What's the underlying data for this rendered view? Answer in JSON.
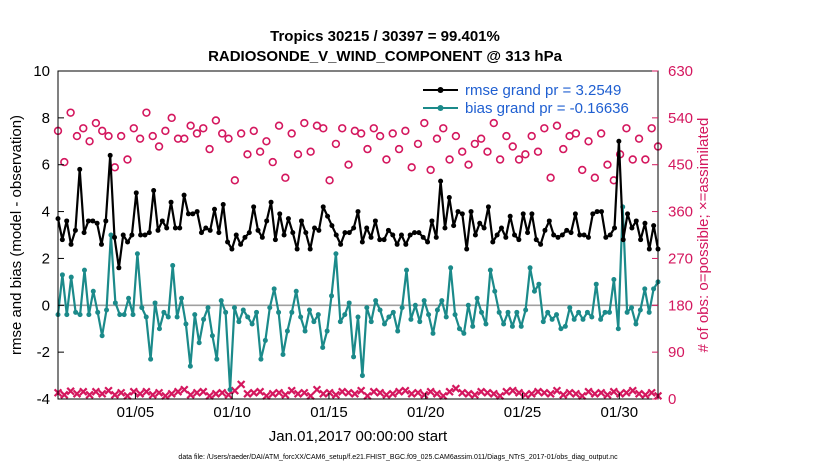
{
  "chart_data": {
    "type": "line",
    "title": "Tropics 30215 / 30397 = 99.401%",
    "subtitle": "RADIOSONDE_V_WIND_COMPONENT @ 313 hPa",
    "xlabel": "Jan.01,2017 00:00:00 start",
    "ylabel_left": "rmse and bias (model - observation)",
    "ylabel_right": "# of obs: o=possible; ×=assimilated",
    "footer": "data file: /Users/raeder/DAI/ATM_forcXX/CAM6_setup/f.e21.FHIST_BGC.f09_025.CAM6assim.011/Diags_NTrS_2017-01/obs_diag_output.nc",
    "x_range": [
      1,
      32
    ],
    "ylim_left": [
      -4,
      10
    ],
    "ylim_right": [
      0,
      630
    ],
    "x_ticks": [
      {
        "day": 5,
        "label": "01/05"
      },
      {
        "day": 10,
        "label": "01/10"
      },
      {
        "day": 15,
        "label": "01/15"
      },
      {
        "day": 20,
        "label": "01/20"
      },
      {
        "day": 25,
        "label": "01/25"
      },
      {
        "day": 30,
        "label": "01/30"
      }
    ],
    "y_ticks_left": [
      "10",
      "8",
      "6",
      "4",
      "2",
      "0",
      "-2",
      "-4"
    ],
    "y_ticks_right": [
      "630",
      "540",
      "450",
      "360",
      "270",
      "180",
      "90",
      "0"
    ],
    "legend": [
      {
        "label": "rmse grand pr = 3.2549",
        "color": "#000000"
      },
      {
        "label": "bias grand pr = -0.16636",
        "color": "#1b8a8a"
      }
    ],
    "colors": {
      "rmse": "#000000",
      "bias": "#1b8a8a",
      "obs": "#d4175e",
      "zero_line": "#a0a0a0"
    },
    "series": [
      {
        "name": "rmse",
        "values": [
          3.7,
          2.8,
          3.6,
          2.6,
          3.2,
          5.8,
          3.1,
          3.6,
          3.6,
          3.5,
          2.6,
          3.6,
          6.4,
          2.9,
          1.6,
          3.0,
          2.7,
          3.0,
          4.8,
          3.0,
          3.0,
          3.1,
          4.9,
          3.2,
          3.6,
          3.3,
          4.4,
          3.3,
          3.3,
          4.7,
          3.9,
          3.9,
          4.0,
          3.1,
          3.3,
          3.2,
          4.1,
          3.1,
          4.3,
          2.7,
          2.4,
          3.0,
          2.6,
          2.9,
          3.1,
          4.2,
          3.2,
          2.9,
          3.6,
          4.4,
          2.8,
          3.9,
          3.0,
          3.7,
          3.1,
          2.4,
          3.6,
          3.1,
          2.4,
          3.3,
          3.2,
          4.2,
          3.8,
          3.4,
          3.0,
          2.6,
          3.1,
          3.1,
          3.3,
          4.0,
          2.7,
          3.3,
          2.9,
          3.6,
          2.8,
          2.8,
          3.2,
          3.0,
          2.6,
          3.0,
          2.6,
          3.0,
          3.1,
          3.1,
          2.9,
          2.7,
          3.6,
          2.9,
          5.3,
          3.3,
          4.6,
          3.4,
          4.0,
          3.9,
          2.4,
          4.0,
          3.0,
          3.5,
          3.3,
          4.2,
          2.7,
          3.0,
          3.3,
          2.9,
          3.8,
          3.0,
          2.8,
          3.9,
          3.1,
          3.9,
          2.8,
          2.6,
          3.2,
          3.6,
          3.0,
          2.9,
          3.0,
          3.2,
          3.1,
          3.9,
          3.0,
          3.0,
          2.9,
          3.9,
          4.0,
          4.0,
          2.9,
          3.0,
          3.3,
          7.0,
          2.8,
          3.9,
          3.3,
          3.6,
          2.8,
          3.5,
          2.4,
          3.4,
          2.4
        ],
        "point_radius": 2.5
      },
      {
        "name": "bias",
        "values": [
          -0.4,
          1.3,
          -0.4,
          1.2,
          -0.3,
          -0.4,
          1.5,
          -0.4,
          0.6,
          -0.3,
          -1.3,
          -0.2,
          3.0,
          0.1,
          -0.4,
          -0.4,
          0.3,
          -0.4,
          2.2,
          -0.1,
          -0.5,
          -2.3,
          0.1,
          -1.0,
          -0.3,
          -0.5,
          1.7,
          -0.5,
          0.3,
          -0.8,
          -2.6,
          -0.4,
          -1.6,
          -0.6,
          -0.1,
          -1.3,
          -2.3,
          0.2,
          -0.3,
          -3.6,
          -0.1,
          -0.7,
          -0.2,
          -0.5,
          -0.8,
          -0.3,
          -2.3,
          -1.5,
          -0.1,
          0.7,
          -0.3,
          -2.1,
          -1.1,
          -0.3,
          0.6,
          -0.5,
          -1.1,
          -0.2,
          -0.7,
          -0.4,
          -1.8,
          -1.1,
          0.4,
          2.2,
          -0.7,
          -0.4,
          0.1,
          -2.2,
          -0.5,
          -3.0,
          -0.1,
          -0.7,
          0.2,
          -0.2,
          -0.8,
          -0.5,
          -0.3,
          -1.1,
          -0.1,
          1.5,
          -0.6,
          0.0,
          -0.7,
          0.2,
          -0.4,
          -1.2,
          -0.2,
          0.2,
          -0.5,
          1.6,
          -0.4,
          -1.0,
          -1.2,
          0.0,
          -0.9,
          0.3,
          -0.3,
          -0.8,
          1.5,
          0.6,
          -0.3,
          -0.8,
          -0.3,
          -0.9,
          -0.3,
          -0.9,
          -0.2,
          1.6,
          0.6,
          0.9,
          -0.7,
          -0.3,
          -0.6,
          -0.4,
          -1.0,
          -0.9,
          -0.1,
          -0.6,
          -0.3,
          -0.6,
          -0.3,
          -0.5,
          0.9,
          -0.6,
          -0.3,
          -0.3,
          1.1,
          -1.0,
          4.2,
          -0.3,
          -0.1,
          -0.8,
          -0.2,
          0.7,
          -0.3,
          0.7,
          1.0
        ],
        "point_radius": 2.5
      },
      {
        "name": "obs_possible",
        "marker": "o",
        "values": [
          515,
          455,
          550,
          505,
          520,
          495,
          530,
          515,
          505,
          445,
          505,
          460,
          520,
          500,
          550,
          505,
          485,
          515,
          540,
          500,
          500,
          525,
          510,
          520,
          480,
          535,
          510,
          500,
          420,
          510,
          470,
          515,
          475,
          495,
          455,
          525,
          425,
          510,
          470,
          530,
          475,
          525,
          520,
          420,
          490,
          520,
          450,
          515,
          510,
          480,
          520,
          505,
          460,
          510,
          480,
          515,
          445,
          490,
          530,
          440,
          500,
          520,
          460,
          505,
          475,
          450,
          490,
          500,
          475,
          530,
          460,
          505,
          485,
          460,
          470,
          505,
          475,
          520,
          425,
          525,
          480,
          505,
          510,
          440,
          495,
          425,
          510,
          450,
          420,
          470,
          520,
          460,
          500,
          460,
          520,
          485
        ],
        "point_radius": 3.4
      },
      {
        "name": "obs_assimilated",
        "marker": "x",
        "values": [
          12,
          8,
          15,
          10,
          14,
          8,
          14,
          10,
          16,
          8,
          12,
          6,
          14,
          10,
          14,
          8,
          12,
          6,
          10,
          14,
          18,
          8,
          12,
          14,
          6,
          10,
          12,
          8,
          16,
          28,
          10,
          12,
          14,
          6,
          10,
          12,
          8,
          16,
          10,
          12,
          6,
          18,
          10,
          12,
          8,
          14,
          12,
          10,
          16,
          6,
          14,
          12,
          8,
          10,
          14,
          16,
          10,
          12,
          8,
          14,
          10,
          6,
          14,
          20,
          12,
          10,
          8,
          14,
          12,
          10,
          6,
          14,
          16,
          12,
          8,
          10,
          14,
          12,
          10,
          16,
          8,
          12,
          10,
          6,
          14,
          10,
          12,
          8,
          14,
          10,
          12,
          16,
          10,
          8,
          12,
          6
        ],
        "point_radius": 3.4
      }
    ]
  }
}
